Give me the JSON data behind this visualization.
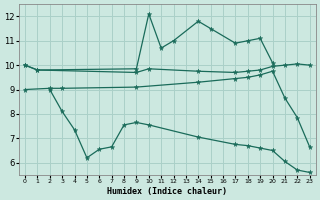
{
  "xlabel": "Humidex (Indice chaleur)",
  "background_color": "#cce8e0",
  "grid_color": "#aad0c8",
  "line_color": "#1a6b5a",
  "x_ticks": [
    0,
    1,
    2,
    3,
    4,
    5,
    6,
    7,
    8,
    9,
    10,
    11,
    12,
    13,
    14,
    15,
    16,
    17,
    18,
    19,
    20,
    21,
    22,
    23
  ],
  "ylim": [
    5.5,
    12.5
  ],
  "yticks": [
    6,
    7,
    8,
    9,
    10,
    11,
    12
  ],
  "line1_x": [
    0,
    1,
    9,
    10,
    11,
    12,
    14,
    15,
    17,
    18,
    19,
    20
  ],
  "line1_y": [
    10.0,
    9.8,
    9.85,
    12.1,
    10.7,
    11.0,
    11.8,
    11.5,
    10.9,
    11.0,
    11.1,
    10.1
  ],
  "line2_x": [
    0,
    1,
    9,
    10,
    14,
    17,
    18,
    19,
    20,
    21,
    22,
    23
  ],
  "line2_y": [
    10.0,
    9.8,
    9.7,
    9.85,
    9.75,
    9.7,
    9.75,
    9.8,
    9.95,
    10.0,
    10.05,
    10.0
  ],
  "line3_x": [
    0,
    2,
    3,
    9,
    14,
    17,
    18,
    19,
    20,
    21,
    22,
    23
  ],
  "line3_y": [
    9.0,
    9.05,
    9.05,
    9.1,
    9.3,
    9.45,
    9.5,
    9.6,
    9.75,
    8.65,
    7.85,
    6.65
  ],
  "line4_x": [
    2,
    3,
    4,
    5,
    6,
    7,
    8,
    9,
    10,
    14,
    17,
    18,
    19,
    20,
    21,
    22,
    23
  ],
  "line4_y": [
    9.0,
    8.1,
    7.35,
    6.2,
    6.55,
    6.65,
    7.55,
    7.65,
    7.55,
    7.05,
    6.75,
    6.7,
    6.6,
    6.5,
    6.05,
    5.7,
    5.6
  ]
}
